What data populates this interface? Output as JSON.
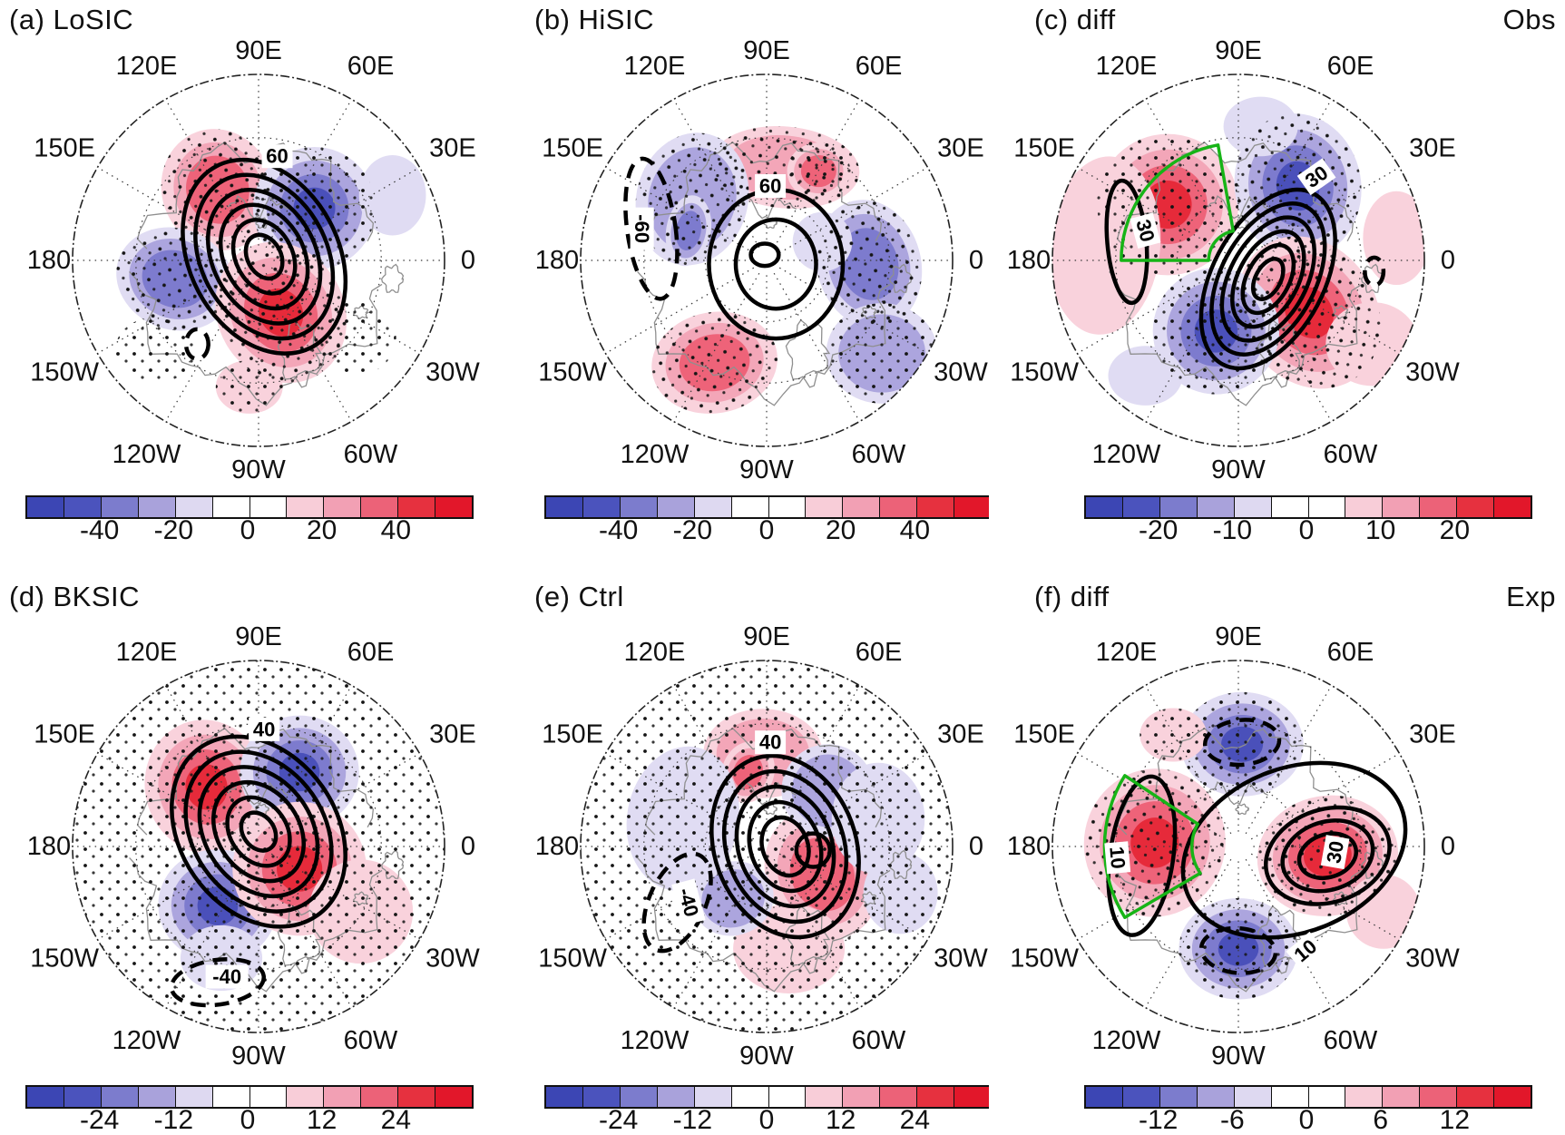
{
  "chart_data": {
    "type": "map",
    "figure_kind": "polar-stereographic anomaly maps with contours, stippling and colorbars",
    "colorbar_colors": [
      "#3c46b4",
      "#4b53bd",
      "#7c7ccd",
      "#a9a2db",
      "#ded9f1",
      "#ffffff",
      "#ffffff",
      "#f8cdd8",
      "#f2a0b4",
      "#ec6278",
      "#e6313f",
      "#e2172a"
    ],
    "shade_red_levels": [
      "#f9d2dc",
      "#f3a6b8",
      "#ee6379",
      "#e62a3a"
    ],
    "shade_blue_levels": [
      "#e0dcf3",
      "#aca5de",
      "#7d7bce",
      "#4a50ba"
    ],
    "region_box_color": "#17b417",
    "lon_labels": [
      {
        "t": "0",
        "a": 0
      },
      {
        "t": "30E",
        "a": 30
      },
      {
        "t": "60E",
        "a": 60
      },
      {
        "t": "90E",
        "a": 90
      },
      {
        "t": "120E",
        "a": 120
      },
      {
        "t": "150E",
        "a": 150
      },
      {
        "t": "180",
        "a": 180
      },
      {
        "t": "150W",
        "a": 210
      },
      {
        "t": "120W",
        "a": 240
      },
      {
        "t": "90W",
        "a": 270
      },
      {
        "t": "60W",
        "a": 300
      },
      {
        "t": "30W",
        "a": 330
      }
    ],
    "panels": [
      {
        "id": "a",
        "title": "(a) LoSIC",
        "corner": "",
        "colorbar": {
          "ticks": [
            "-40",
            "-20",
            "0",
            "20",
            "40"
          ]
        },
        "full_stipple": false,
        "region_box": null,
        "blobs": [
          {
            "c": [
              -0.22,
              0.38
            ],
            "r": 0.3,
            "ar": 1.1,
            "rot": -20,
            "col": "R",
            "lv": 3,
            "st": 1
          },
          {
            "c": [
              0.3,
              0.28
            ],
            "r": 0.33,
            "ar": 1.0,
            "rot": 0,
            "col": "B",
            "lv": 4,
            "st": 1
          },
          {
            "c": [
              -0.45,
              -0.1
            ],
            "r": 0.32,
            "ar": 0.85,
            "rot": 20,
            "col": "B",
            "lv": 3,
            "st": 1
          },
          {
            "c": [
              0.12,
              -0.28
            ],
            "r": 0.34,
            "ar": 1.15,
            "rot": -30,
            "col": "R",
            "lv": 4,
            "st": 1
          },
          {
            "c": [
              0.72,
              0.35
            ],
            "r": 0.18,
            "ar": 1.2,
            "rot": 0,
            "col": "B",
            "lv": 1,
            "st": 0
          },
          {
            "c": [
              -0.05,
              -0.68
            ],
            "r": 0.18,
            "ar": 0.8,
            "rot": 0,
            "col": "R",
            "lv": 1,
            "st": 1
          },
          {
            "c": [
              -0.55,
              -0.48
            ],
            "r": 0.22,
            "ar": 0.8,
            "rot": 0,
            "col": "D",
            "lv": 0,
            "st": 1
          },
          {
            "c": [
              0.52,
              -0.42
            ],
            "r": 0.22,
            "ar": 0.9,
            "rot": 0,
            "col": "D",
            "lv": 0,
            "st": 1
          }
        ],
        "nests": [
          {
            "c": [
              0.03,
              0.02
            ],
            "rx": 0.4,
            "ry": 0.55,
            "rot": -28,
            "n": 6,
            "step": 0.155
          }
        ],
        "extra": [
          {
            "c": [
              -0.33,
              -0.45
            ],
            "rx": 0.06,
            "ry": 0.08,
            "rot": 0,
            "dashed": true
          }
        ],
        "labels": [
          {
            "t": "60",
            "p": [
              0.1,
              0.56
            ],
            "rot": 0
          }
        ]
      },
      {
        "id": "b",
        "title": "(b) HiSIC",
        "corner": "",
        "colorbar": {
          "ticks": [
            "-40",
            "-20",
            "0",
            "20",
            "40"
          ]
        },
        "full_stipple": false,
        "region_box": null,
        "blobs": [
          {
            "c": [
              0.1,
              0.5
            ],
            "r": 0.4,
            "ar": 0.55,
            "rot": 5,
            "col": "R",
            "lv": 2,
            "st": 1
          },
          {
            "c": [
              0.28,
              0.48
            ],
            "r": 0.17,
            "ar": 0.9,
            "rot": 0,
            "col": "R",
            "lv": 3,
            "st": 1
          },
          {
            "c": [
              -0.4,
              0.33
            ],
            "r": 0.3,
            "ar": 1.2,
            "rot": 15,
            "col": "B",
            "lv": 2,
            "st": 1
          },
          {
            "c": [
              -0.42,
              0.16
            ],
            "r": 0.12,
            "ar": 1.6,
            "rot": 10,
            "col": "B",
            "lv": 3,
            "st": 0
          },
          {
            "c": [
              0.55,
              -0.02
            ],
            "r": 0.28,
            "ar": 1.25,
            "rot": -15,
            "col": "B",
            "lv": 3,
            "st": 1
          },
          {
            "c": [
              -0.28,
              -0.55
            ],
            "r": 0.34,
            "ar": 0.8,
            "rot": -10,
            "col": "R",
            "lv": 3,
            "st": 1
          },
          {
            "c": [
              0.62,
              -0.5
            ],
            "r": 0.3,
            "ar": 0.9,
            "rot": 0,
            "col": "B",
            "lv": 2,
            "st": 1
          },
          {
            "c": [
              0.3,
              0.1
            ],
            "r": 0.16,
            "ar": 1.0,
            "rot": 0,
            "col": "B",
            "lv": 1,
            "st": 0
          }
        ],
        "nests": [
          {
            "c": [
              0.05,
              -0.02
            ],
            "rx": 0.36,
            "ry": 0.4,
            "rot": 0,
            "n": 2,
            "step": 0.4
          }
        ],
        "extra": [
          {
            "c": [
              -0.01,
              0.03
            ],
            "rx": 0.075,
            "ry": 0.06,
            "rot": 0
          },
          {
            "c": [
              -0.62,
              0.17
            ],
            "rx": 0.13,
            "ry": 0.38,
            "rot": -8,
            "dashed": true
          }
        ],
        "labels": [
          {
            "t": "60",
            "p": [
              0.02,
              0.4
            ],
            "rot": 0
          },
          {
            "t": "-60",
            "p": [
              -0.67,
              0.17
            ],
            "rot": 90
          }
        ]
      },
      {
        "id": "c",
        "title": "(c) diff",
        "corner": "Obs",
        "colorbar": {
          "ticks": [
            "-20",
            "-10",
            "0",
            "10",
            "20"
          ]
        },
        "full_stipple": false,
        "region_box": {
          "a0": 100,
          "a1": 180,
          "r0": 0.16,
          "r1": 0.63
        },
        "blobs": [
          {
            "c": [
              -0.38,
              0.3
            ],
            "r": 0.38,
            "ar": 1.0,
            "rot": 0,
            "col": "R",
            "lv": 4,
            "st": 1
          },
          {
            "c": [
              -0.72,
              0.08
            ],
            "r": 0.3,
            "ar": 1.6,
            "rot": 5,
            "col": "R",
            "lv": 1,
            "st": 0
          },
          {
            "c": [
              0.32,
              0.4
            ],
            "r": 0.34,
            "ar": 1.15,
            "rot": -10,
            "col": "B",
            "lv": 4,
            "st": 1
          },
          {
            "c": [
              0.12,
              0.72
            ],
            "r": 0.2,
            "ar": 0.8,
            "rot": 0,
            "col": "B",
            "lv": 1,
            "st": 0
          },
          {
            "c": [
              0.38,
              -0.28
            ],
            "r": 0.36,
            "ar": 1.2,
            "rot": -35,
            "col": "R",
            "lv": 4,
            "st": 1
          },
          {
            "c": [
              -0.12,
              -0.38
            ],
            "r": 0.34,
            "ar": 1.0,
            "rot": 0,
            "col": "B",
            "lv": 4,
            "st": 1
          },
          {
            "c": [
              0.72,
              -0.45
            ],
            "r": 0.25,
            "ar": 0.9,
            "rot": 0,
            "col": "R",
            "lv": 1,
            "st": 0
          },
          {
            "c": [
              0.85,
              0.12
            ],
            "r": 0.18,
            "ar": 1.4,
            "rot": 0,
            "col": "R",
            "lv": 1,
            "st": 0
          },
          {
            "c": [
              -0.5,
              -0.62
            ],
            "r": 0.2,
            "ar": 0.8,
            "rot": 0,
            "col": "B",
            "lv": 1,
            "st": 0
          }
        ],
        "nests": [
          {
            "c": [
              0.16,
              -0.1
            ],
            "rx": 0.3,
            "ry": 0.52,
            "rot": 28,
            "n": 6,
            "step": 0.155
          }
        ],
        "extra": [
          {
            "c": [
              -0.6,
              0.1
            ],
            "rx": 0.105,
            "ry": 0.33,
            "rot": -5
          },
          {
            "c": [
              0.73,
              -0.06
            ],
            "rx": 0.05,
            "ry": 0.075,
            "rot": 0,
            "dashed": true
          }
        ],
        "labels": [
          {
            "t": "30",
            "p": [
              0.42,
              0.45
            ],
            "rot": -35,
            "box": true
          },
          {
            "t": "30",
            "p": [
              -0.5,
              0.16
            ],
            "rot": 75,
            "box": true
          }
        ]
      },
      {
        "id": "d",
        "title": "(d) BKSIC",
        "corner": "",
        "colorbar": {
          "ticks": [
            "-24",
            "-12",
            "0",
            "12",
            "24"
          ]
        },
        "full_stipple": true,
        "region_box": null,
        "blobs": [
          {
            "c": [
              -0.28,
              0.32
            ],
            "r": 0.33,
            "ar": 1.1,
            "rot": -15,
            "col": "R",
            "lv": 4,
            "st": 0
          },
          {
            "c": [
              0.22,
              0.4
            ],
            "r": 0.32,
            "ar": 0.95,
            "rot": 0,
            "col": "B",
            "lv": 4,
            "st": 0
          },
          {
            "c": [
              -0.22,
              -0.32
            ],
            "r": 0.32,
            "ar": 0.95,
            "rot": 10,
            "col": "B",
            "lv": 4,
            "st": 0
          },
          {
            "c": [
              0.22,
              -0.12
            ],
            "r": 0.36,
            "ar": 1.0,
            "rot": -20,
            "col": "R",
            "lv": 4,
            "st": 0
          },
          {
            "c": [
              0.55,
              -0.35
            ],
            "r": 0.28,
            "ar": 1.0,
            "rot": 0,
            "col": "R",
            "lv": 1,
            "st": 0
          },
          {
            "c": [
              -0.2,
              -0.6
            ],
            "r": 0.22,
            "ar": 0.8,
            "rot": 0,
            "col": "B",
            "lv": 1,
            "st": 0
          }
        ],
        "nests": [
          {
            "c": [
              0.0,
              0.08
            ],
            "rx": 0.42,
            "ry": 0.55,
            "rot": -35,
            "n": 6,
            "step": 0.16
          }
        ],
        "extra": [
          {
            "c": [
              -0.22,
              -0.73
            ],
            "rx": 0.25,
            "ry": 0.12,
            "rot": -8,
            "dashed": true
          }
        ],
        "labels": [
          {
            "t": "40",
            "p": [
              0.03,
              0.63
            ],
            "rot": 0
          },
          {
            "t": "-40",
            "p": [
              -0.17,
              -0.7
            ],
            "rot": 0
          }
        ]
      },
      {
        "id": "e",
        "title": "(e) Ctrl",
        "corner": "",
        "colorbar": {
          "ticks": [
            "-24",
            "-12",
            "0",
            "12",
            "24"
          ]
        },
        "full_stipple": true,
        "region_box": null,
        "blobs": [
          {
            "c": [
              -0.02,
              0.5
            ],
            "r": 0.32,
            "ar": 0.75,
            "rot": 0,
            "col": "R",
            "lv": 2,
            "st": 0
          },
          {
            "c": [
              -0.1,
              0.4
            ],
            "r": 0.14,
            "ar": 1.2,
            "rot": 20,
            "col": "R",
            "lv": 3,
            "st": 0
          },
          {
            "c": [
              0.3,
              -0.15
            ],
            "r": 0.3,
            "ar": 1.2,
            "rot": -25,
            "col": "R",
            "lv": 3,
            "st": 0
          },
          {
            "c": [
              0.12,
              -0.55
            ],
            "r": 0.3,
            "ar": 0.8,
            "rot": 0,
            "col": "R",
            "lv": 1,
            "st": 0
          },
          {
            "c": [
              0.33,
              0.3
            ],
            "r": 0.25,
            "ar": 1.0,
            "rot": 0,
            "col": "B",
            "lv": 2,
            "st": 0
          },
          {
            "c": [
              0.6,
              0.15
            ],
            "r": 0.25,
            "ar": 1.2,
            "rot": 0,
            "col": "B",
            "lv": 1,
            "st": 0
          },
          {
            "c": [
              -0.45,
              0.15
            ],
            "r": 0.3,
            "ar": 1.3,
            "rot": 10,
            "col": "B",
            "lv": 1,
            "st": 0
          },
          {
            "c": [
              -0.18,
              -0.28
            ],
            "r": 0.22,
            "ar": 0.9,
            "rot": -20,
            "col": "B",
            "lv": 2,
            "st": 0
          },
          {
            "c": [
              0.72,
              -0.25
            ],
            "r": 0.2,
            "ar": 1.1,
            "rot": 0,
            "col": "B",
            "lv": 1,
            "st": 0
          }
        ],
        "nests": [
          {
            "c": [
              0.1,
              0.0
            ],
            "rx": 0.38,
            "ry": 0.5,
            "rot": -20,
            "n": 5,
            "step": 0.17
          }
        ],
        "extra": [
          {
            "c": [
              0.25,
              -0.02
            ],
            "rx": 0.09,
            "ry": 0.09,
            "rot": 0
          },
          {
            "c": [
              -0.48,
              -0.3
            ],
            "rx": 0.15,
            "ry": 0.28,
            "rot": 25,
            "dashed": true
          }
        ],
        "labels": [
          {
            "t": "40",
            "p": [
              0.02,
              0.56
            ],
            "rot": 0
          },
          {
            "t": "-40",
            "p": [
              -0.42,
              -0.3
            ],
            "rot": 75
          }
        ]
      },
      {
        "id": "f",
        "title": "(f) diff",
        "corner": "Exp",
        "colorbar": {
          "ticks": [
            "-12",
            "-6",
            "0",
            "6",
            "12"
          ]
        },
        "full_stipple": false,
        "region_box": {
          "a0": 148,
          "a1": 215,
          "r0": 0.25,
          "r1": 0.72
        },
        "blobs": [
          {
            "c": [
              0.02,
              0.55
            ],
            "r": 0.33,
            "ar": 0.85,
            "rot": 0,
            "col": "B",
            "lv": 4,
            "st": 1
          },
          {
            "c": [
              0.0,
              -0.55
            ],
            "r": 0.32,
            "ar": 0.85,
            "rot": 0,
            "col": "B",
            "lv": 4,
            "st": 1
          },
          {
            "c": [
              -0.45,
              0.02
            ],
            "r": 0.38,
            "ar": 1.05,
            "rot": 10,
            "col": "R",
            "lv": 4,
            "st": 1
          },
          {
            "c": [
              0.48,
              -0.05
            ],
            "r": 0.38,
            "ar": 0.85,
            "rot": -10,
            "col": "R",
            "lv": 4,
            "st": 1
          },
          {
            "c": [
              0.78,
              -0.35
            ],
            "r": 0.2,
            "ar": 1.0,
            "rot": 0,
            "col": "R",
            "lv": 1,
            "st": 0
          },
          {
            "c": [
              -0.35,
              0.6
            ],
            "r": 0.18,
            "ar": 0.8,
            "rot": 0,
            "col": "R",
            "lv": 1,
            "st": 1
          }
        ],
        "nests": [
          {
            "c": [
              0.48,
              -0.05
            ],
            "rx": 0.34,
            "ry": 0.25,
            "rot": -18,
            "n": 3,
            "step": 0.27
          }
        ],
        "extra": [
          {
            "c": [
              0.3,
              -0.02
            ],
            "rx": 0.62,
            "ry": 0.44,
            "rot": -22
          },
          {
            "c": [
              -0.52,
              -0.05
            ],
            "rx": 0.17,
            "ry": 0.43,
            "rot": 8
          },
          {
            "c": [
              0.02,
              0.56
            ],
            "rx": 0.2,
            "ry": 0.12,
            "rot": -5,
            "dashed": true
          },
          {
            "c": [
              0.0,
              -0.56
            ],
            "rx": 0.2,
            "ry": 0.12,
            "rot": 5,
            "dashed": true
          }
        ],
        "labels": [
          {
            "t": "30",
            "p": [
              0.52,
              -0.03
            ],
            "rot": -80,
            "box": true
          },
          {
            "t": "10",
            "p": [
              0.36,
              -0.56
            ],
            "rot": -40
          },
          {
            "t": "10",
            "p": [
              -0.65,
              -0.06
            ],
            "rot": 85
          }
        ]
      }
    ]
  }
}
